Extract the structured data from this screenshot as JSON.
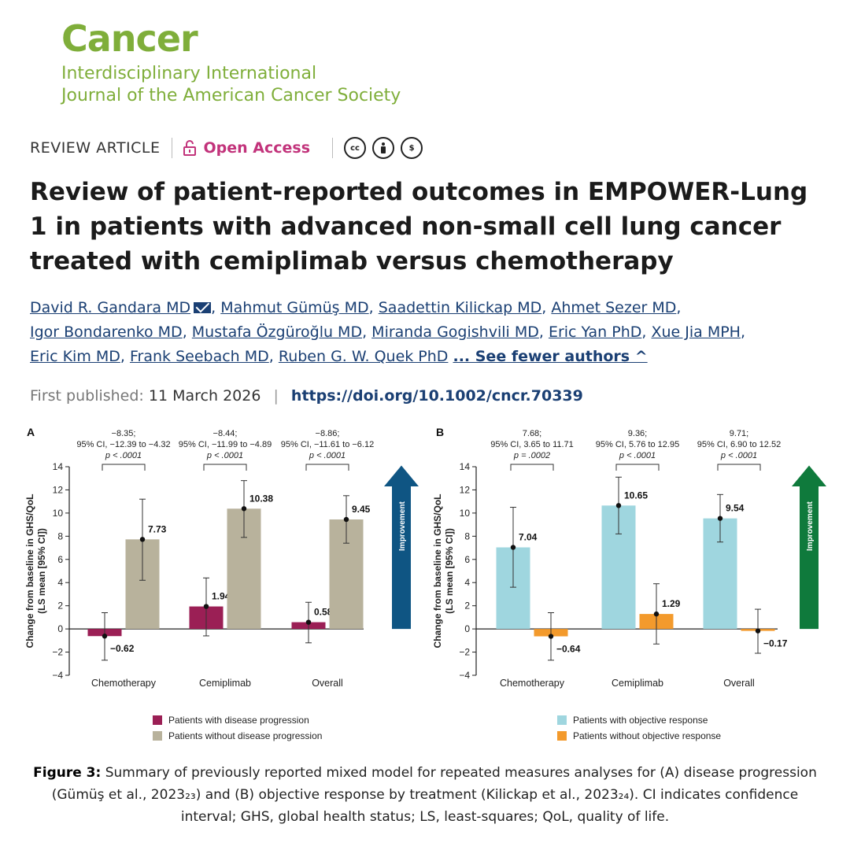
{
  "journal": {
    "name": "Cancer",
    "subtitle_line1": "Interdisciplinary International",
    "subtitle_line2": "Journal of the American Cancer Society"
  },
  "meta": {
    "article_type": "REVIEW ARTICLE",
    "access_label": "Open Access",
    "license_icons": [
      "cc-icon",
      "attribution-icon",
      "non-commercial-icon"
    ]
  },
  "article": {
    "title": "Review of patient-reported outcomes in EMPOWER-Lung 1 in patients with advanced non-small cell lung cancer treated with cemiplimab versus chemotherapy",
    "authors": [
      "David R. Gandara MD",
      "Mahmut Gümüş MD",
      "Saadettin Kilickap MD",
      "Ahmet Sezer MD",
      "Igor Bondarenko MD",
      "Mustafa Özgüroğlu MD",
      "Miranda Gogishvili MD",
      "Eric Yan PhD",
      "Xue Jia MPH",
      "Eric Kim MD",
      "Frank Seebach MD",
      "Ruben G. W. Quek PhD"
    ],
    "see_fewer": "... See fewer authors ^",
    "first_published_label": "First published:",
    "first_published_date": "11 March 2026",
    "doi": "https://doi.org/10.1002/cncr.70339"
  },
  "figure": {
    "caption_bold": "Figure 3:",
    "caption_text": " Summary of previously reported mixed model for repeated measures analyses for (A) disease progression (Gümüş et al., 2023₂₃) and (B) objective response by treatment (Kilickap et al., 2023₂₄). CI indicates confidence interval; GHS, global health status; LS, least-squares; QoL, quality of life."
  },
  "colors": {
    "journal_green": "#7fae3a",
    "open_access_pink": "#c2337b",
    "link_blue": "#1a3f73",
    "progression": "#9b1f55",
    "no_progression": "#b8b29c",
    "response": "#9fd6df",
    "no_response": "#f39a2c",
    "arrow_blue": "#0f5583",
    "arrow_green": "#0f7a3c"
  },
  "chart_data": [
    {
      "type": "bar",
      "panel": "A",
      "categories": [
        "Chemotherapy",
        "Cemiplimab",
        "Overall"
      ],
      "ylabel": "Change from baseline in GHS/QoL (LS mean [95% CI])",
      "ylim": [
        -4,
        14
      ],
      "yticks": [
        "−4",
        "−2",
        "0",
        "2",
        "4",
        "6",
        "8",
        "10",
        "12",
        "14"
      ],
      "arrow_label": "Improvement",
      "series": [
        {
          "name": "Patients with disease progression",
          "values": [
            -0.62,
            1.94,
            0.58
          ],
          "labels": [
            "−0.62",
            "1.94",
            "0.58"
          ],
          "ci_low": [
            -2.7,
            -0.6,
            -1.2
          ],
          "ci_high": [
            1.4,
            4.4,
            2.3
          ]
        },
        {
          "name": "Patients without disease progression",
          "values": [
            7.73,
            10.38,
            9.45
          ],
          "labels": [
            "7.73",
            "10.38",
            "9.45"
          ],
          "ci_low": [
            4.2,
            7.9,
            7.4
          ],
          "ci_high": [
            11.2,
            12.8,
            11.5
          ]
        }
      ],
      "annotations": [
        {
          "line1": "−8.35;",
          "line2": "95% CI, −12.39 to −4.32",
          "p": "p < .0001"
        },
        {
          "line1": "−8.44;",
          "line2": "95% CI, −11.99 to −4.89",
          "p": "p < .0001"
        },
        {
          "line1": "−8.86;",
          "line2": "95% CI, −11.61 to −6.12",
          "p": "p < .0001"
        }
      ]
    },
    {
      "type": "bar",
      "panel": "B",
      "categories": [
        "Chemotherapy",
        "Cemiplimab",
        "Overall"
      ],
      "ylabel": "Change from baseline in GHS/QoL (LS mean [95% CI])",
      "ylim": [
        -4,
        14
      ],
      "yticks": [
        "−4",
        "−2",
        "0",
        "2",
        "4",
        "6",
        "8",
        "10",
        "12",
        "14"
      ],
      "arrow_label": "Improvement",
      "series": [
        {
          "name": "Patients with objective response",
          "values": [
            7.04,
            10.65,
            9.54
          ],
          "labels": [
            "7.04",
            "10.65",
            "9.54"
          ],
          "ci_low": [
            3.6,
            8.2,
            7.5
          ],
          "ci_high": [
            10.5,
            13.1,
            11.6
          ]
        },
        {
          "name": "Patients without objective response",
          "values": [
            -0.64,
            1.29,
            -0.17
          ],
          "labels": [
            "−0.64",
            "1.29",
            "−0.17"
          ],
          "ci_low": [
            -2.7,
            -1.3,
            -2.1
          ],
          "ci_high": [
            1.4,
            3.9,
            1.7
          ]
        }
      ],
      "annotations": [
        {
          "line1": "7.68;",
          "line2": "95% CI, 3.65 to 11.71",
          "p": "p = .0002"
        },
        {
          "line1": "9.36;",
          "line2": "95% CI, 5.76 to 12.95",
          "p": "p < .0001"
        },
        {
          "line1": "9.71;",
          "line2": "95% CI, 6.90 to 12.52",
          "p": "p < .0001"
        }
      ]
    }
  ]
}
